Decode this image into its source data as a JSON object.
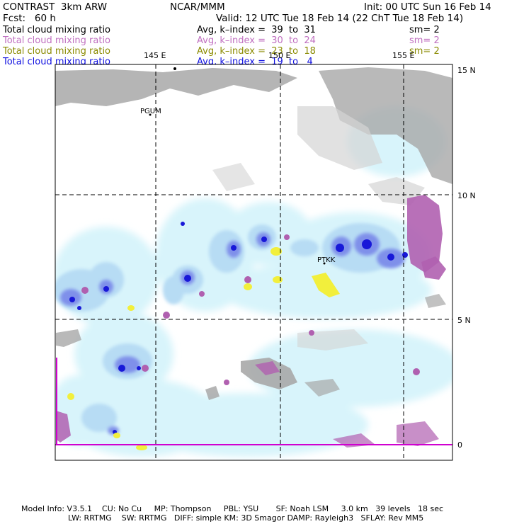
{
  "header": {
    "model": "CONTRAST  3km ARW",
    "org": "NCAR/MMM",
    "init": "Init: 00 UTC Sun 16 Feb 14",
    "fcst": "Fcst:   60 h",
    "valid": "Valid: 12 UTC Tue 18 Feb 14 (22 ChT Tue 18 Feb 14)"
  },
  "fields": [
    {
      "name": "Total cloud mixing ratio",
      "range": "Avg, k–index =  39  to  31",
      "sm": "sm= 2",
      "color": "#000000"
    },
    {
      "name": "Total cloud mixing ratio",
      "range": "Avg, k–index =  30  to  24",
      "sm": "sm= 2",
      "color": "#c070c0"
    },
    {
      "name": "Total cloud mixing ratio",
      "range": "Avg, k–index =  23  to  18",
      "sm": "sm= 2",
      "color": "#8a8a00"
    },
    {
      "name": "Total cloud mixing ratio",
      "range": "Avg, k–index =  19  to   4",
      "sm": "",
      "color": "#1010e0"
    }
  ],
  "map": {
    "lon_labels": [
      "145 E",
      "150 E",
      "155 E"
    ],
    "lat_labels": [
      "15 N",
      "10 N",
      "5 N",
      "0"
    ],
    "stations": [
      "PGUM",
      "PTKK"
    ]
  },
  "footer": {
    "line1": "Model Info: V3.5.1    CU: No Cu     MP: Thompson     PBL: YSU       SF: Noah LSM     3.0 km   39 levels   18 sec",
    "line2": "LW: RRTMG    SW: RRTMG   DIFF: simple KM: 3D Smagor DAMP: Rayleigh3   SFLAY: Rev MM5"
  }
}
